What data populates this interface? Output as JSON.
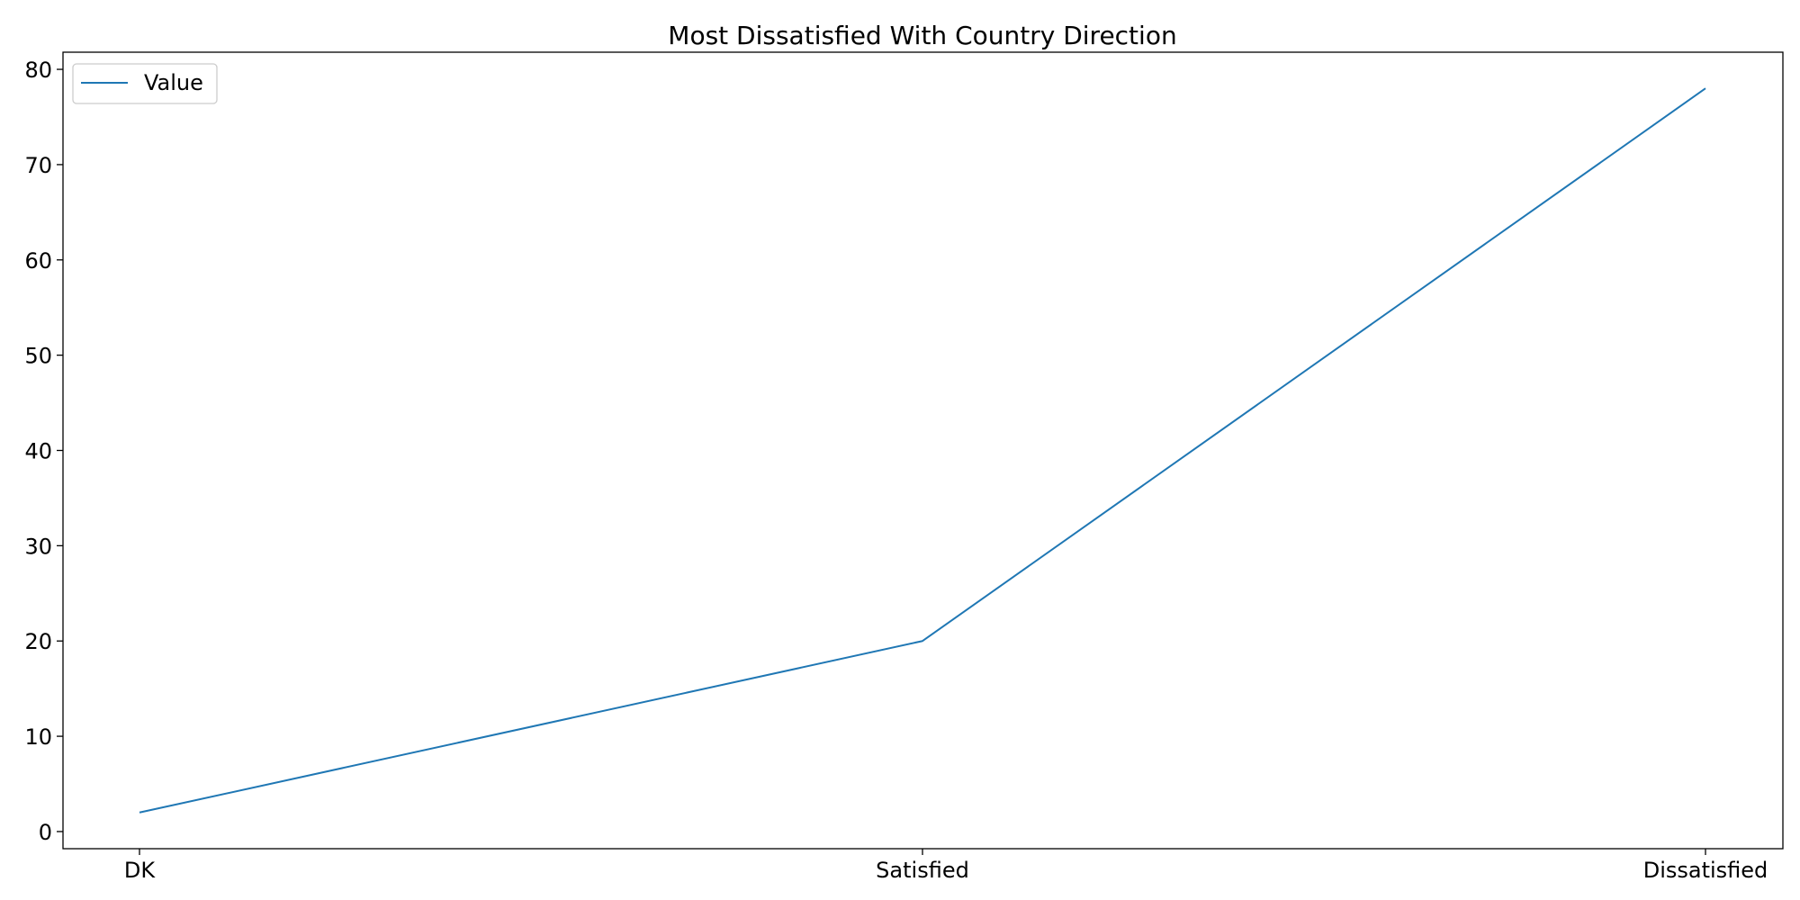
{
  "chart_data": {
    "type": "line",
    "title": "Most Dissatisfied With Country Direction",
    "xlabel": "",
    "ylabel": "",
    "categories": [
      "DK",
      "Satisfied",
      "Dissatisfied"
    ],
    "series": [
      {
        "name": "Value",
        "values": [
          2,
          20,
          78
        ],
        "color": "#1f77b4"
      }
    ],
    "ylim": [
      -1.8,
      81.8
    ],
    "yticks": [
      0,
      10,
      20,
      30,
      40,
      50,
      60,
      70,
      80
    ],
    "grid": false,
    "legend_position": "upper-left"
  }
}
